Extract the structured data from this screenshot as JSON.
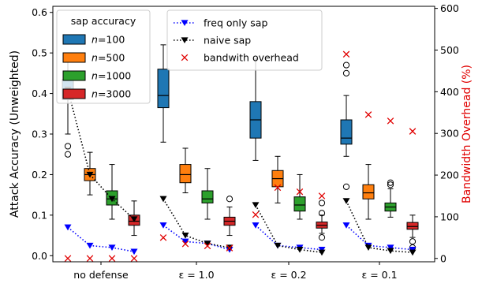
{
  "chart_data": {
    "type": "box",
    "title": "",
    "xlabel": "",
    "ylabel": "Attack Accuracy (Unweighted)",
    "y2label": "Bandwidth Overhead (%)",
    "ylim": [
      -0.015,
      0.615
    ],
    "y2lim": [
      -8,
      605
    ],
    "y_ticks": [
      "0.0",
      "0.1",
      "0.2",
      "0.3",
      "0.4",
      "0.5",
      "0.6"
    ],
    "y2_ticks": [
      "0",
      "100",
      "200",
      "300",
      "400",
      "500",
      "600"
    ],
    "grid": false,
    "colors": {
      "n100": "#1f77b4",
      "n500": "#ff7f0e",
      "n1000": "#2ca02c",
      "n3000": "#d62728",
      "freq": "#0000ff",
      "naive": "#000000",
      "overhead": "#e00000",
      "y2label": "#e00000"
    },
    "categories": [
      "no defense",
      "ε = 1.0",
      "ε = 0.2",
      "ε = 0.1"
    ],
    "box_legend_title": "sap accuracy",
    "box_series": [
      {
        "name": "n=100",
        "n_value": "100",
        "color": "#1f77b4",
        "boxes": [
          {
            "whislo": 0.3,
            "q1": 0.385,
            "med": 0.405,
            "q3": 0.435,
            "whishi": 0.495,
            "fliers": [
              0.27,
              0.25
            ]
          },
          {
            "whislo": 0.28,
            "q1": 0.365,
            "med": 0.395,
            "q3": 0.46,
            "whishi": 0.52,
            "fliers": []
          },
          {
            "whislo": 0.235,
            "q1": 0.29,
            "med": 0.335,
            "q3": 0.38,
            "whishi": 0.485,
            "fliers": []
          },
          {
            "whislo": 0.245,
            "q1": 0.275,
            "med": 0.29,
            "q3": 0.335,
            "whishi": 0.395,
            "fliers": [
              0.47,
              0.45,
              0.17
            ]
          }
        ]
      },
      {
        "name": "n=500",
        "n_value": "500",
        "color": "#ff7f0e",
        "boxes": [
          {
            "whislo": 0.15,
            "q1": 0.185,
            "med": 0.2,
            "q3": 0.215,
            "whishi": 0.255,
            "fliers": []
          },
          {
            "whislo": 0.155,
            "q1": 0.18,
            "med": 0.2,
            "q3": 0.225,
            "whishi": 0.265,
            "fliers": []
          },
          {
            "whislo": 0.13,
            "q1": 0.17,
            "med": 0.19,
            "q3": 0.21,
            "whishi": 0.245,
            "fliers": []
          },
          {
            "whislo": 0.09,
            "q1": 0.14,
            "med": 0.155,
            "q3": 0.175,
            "whishi": 0.225,
            "fliers": []
          }
        ]
      },
      {
        "name": "n=1000",
        "n_value": "1000",
        "color": "#2ca02c",
        "boxes": [
          {
            "whislo": 0.09,
            "q1": 0.125,
            "med": 0.14,
            "q3": 0.16,
            "whishi": 0.225,
            "fliers": []
          },
          {
            "whislo": 0.09,
            "q1": 0.13,
            "med": 0.14,
            "q3": 0.16,
            "whishi": 0.215,
            "fliers": []
          },
          {
            "whislo": 0.09,
            "q1": 0.11,
            "med": 0.125,
            "q3": 0.145,
            "whishi": 0.2,
            "fliers": []
          },
          {
            "whislo": 0.095,
            "q1": 0.11,
            "med": 0.12,
            "q3": 0.13,
            "whishi": 0.165,
            "fliers": [
              0.18,
              0.175
            ]
          }
        ]
      },
      {
        "name": "n=3000",
        "n_value": "3000",
        "color": "#d62728",
        "boxes": [
          {
            "whislo": 0.05,
            "q1": 0.075,
            "med": 0.085,
            "q3": 0.1,
            "whishi": 0.135,
            "fliers": []
          },
          {
            "whislo": 0.05,
            "q1": 0.075,
            "med": 0.085,
            "q3": 0.095,
            "whishi": 0.12,
            "fliers": [
              0.14
            ]
          },
          {
            "whislo": 0.055,
            "q1": 0.068,
            "med": 0.075,
            "q3": 0.083,
            "whishi": 0.1,
            "fliers": [
              0.13,
              0.105,
              0.045
            ]
          },
          {
            "whislo": 0.045,
            "q1": 0.065,
            "med": 0.072,
            "q3": 0.082,
            "whishi": 0.1,
            "fliers": [
              0.035,
              0.02
            ]
          }
        ]
      }
    ],
    "line_series": [
      {
        "name": "freq only sap",
        "color": "#0000ff",
        "marker": "triangle-down",
        "style": "dotted",
        "values": [
          [
            0.07,
            0.025,
            0.02,
            0.01
          ],
          [
            0.075,
            0.035,
            0.03,
            0.015
          ],
          [
            0.075,
            0.025,
            0.02,
            0.015
          ],
          [
            0.075,
            0.025,
            0.02,
            0.015
          ]
        ]
      },
      {
        "name": "naive sap",
        "color": "#000000",
        "marker": "triangle-down",
        "style": "dotted",
        "values": [
          [
            0.41,
            0.2,
            0.14,
            0.09
          ],
          [
            0.14,
            0.05,
            0.03,
            0.02
          ],
          [
            0.125,
            0.025,
            0.015,
            0.008
          ],
          [
            0.135,
            0.02,
            0.012,
            0.008
          ]
        ]
      }
    ],
    "overhead_series": {
      "name": "bandwith overhead",
      "color": "#e00000",
      "marker": "x",
      "axis": "right",
      "values": [
        [
          0,
          0,
          0,
          0
        ],
        [
          50,
          35,
          30,
          25
        ],
        [
          105,
          170,
          160,
          150
        ],
        [
          490,
          345,
          330,
          305
        ]
      ]
    },
    "legend_placement": "top-left and top-center"
  }
}
